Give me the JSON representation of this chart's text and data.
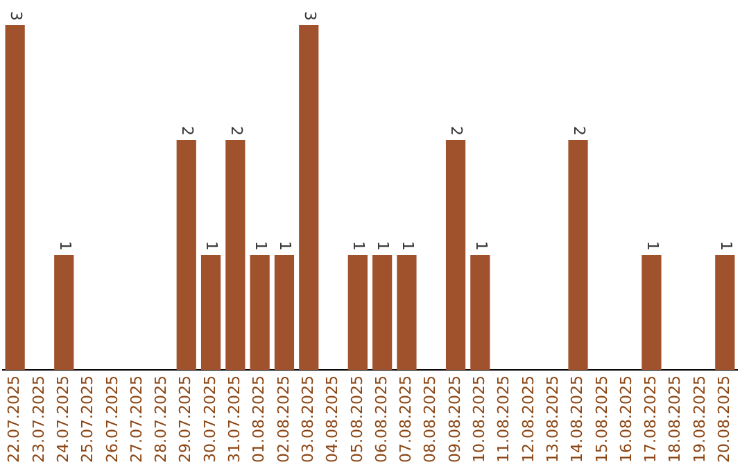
{
  "chart_data": {
    "type": "bar",
    "categories": [
      "22.07.2025",
      "23.07.2025",
      "24.07.2025",
      "25.07.2025",
      "26.07.2025",
      "27.07.2025",
      "28.07.2025",
      "29.07.2025",
      "30.07.2025",
      "31.07.2025",
      "01.08.2025",
      "02.08.2025",
      "03.08.2025",
      "04.08.2025",
      "05.08.2025",
      "06.08.2025",
      "07.08.2025",
      "08.08.2025",
      "09.08.2025",
      "10.08.2025",
      "11.08.2025",
      "12.08.2025",
      "13.08.2025",
      "14.08.2025",
      "15.08.2025",
      "16.08.2025",
      "17.08.2025",
      "18.08.2025",
      "19.08.2025",
      "20.08.2025"
    ],
    "values": [
      3,
      0,
      1,
      0,
      0,
      0,
      0,
      2,
      1,
      2,
      1,
      1,
      3,
      0,
      1,
      1,
      1,
      0,
      2,
      1,
      0,
      0,
      0,
      2,
      0,
      0,
      1,
      0,
      0,
      1
    ],
    "value_labels": [
      "3",
      null,
      "1",
      null,
      null,
      null,
      null,
      "2",
      "1",
      "2",
      "1",
      "1",
      "3",
      null,
      "1",
      "1",
      "1",
      null,
      "2",
      "1",
      null,
      null,
      null,
      "2",
      null,
      null,
      "1",
      null,
      null,
      "1"
    ],
    "color": "#a0522d",
    "grid": false,
    "legend": false
  }
}
